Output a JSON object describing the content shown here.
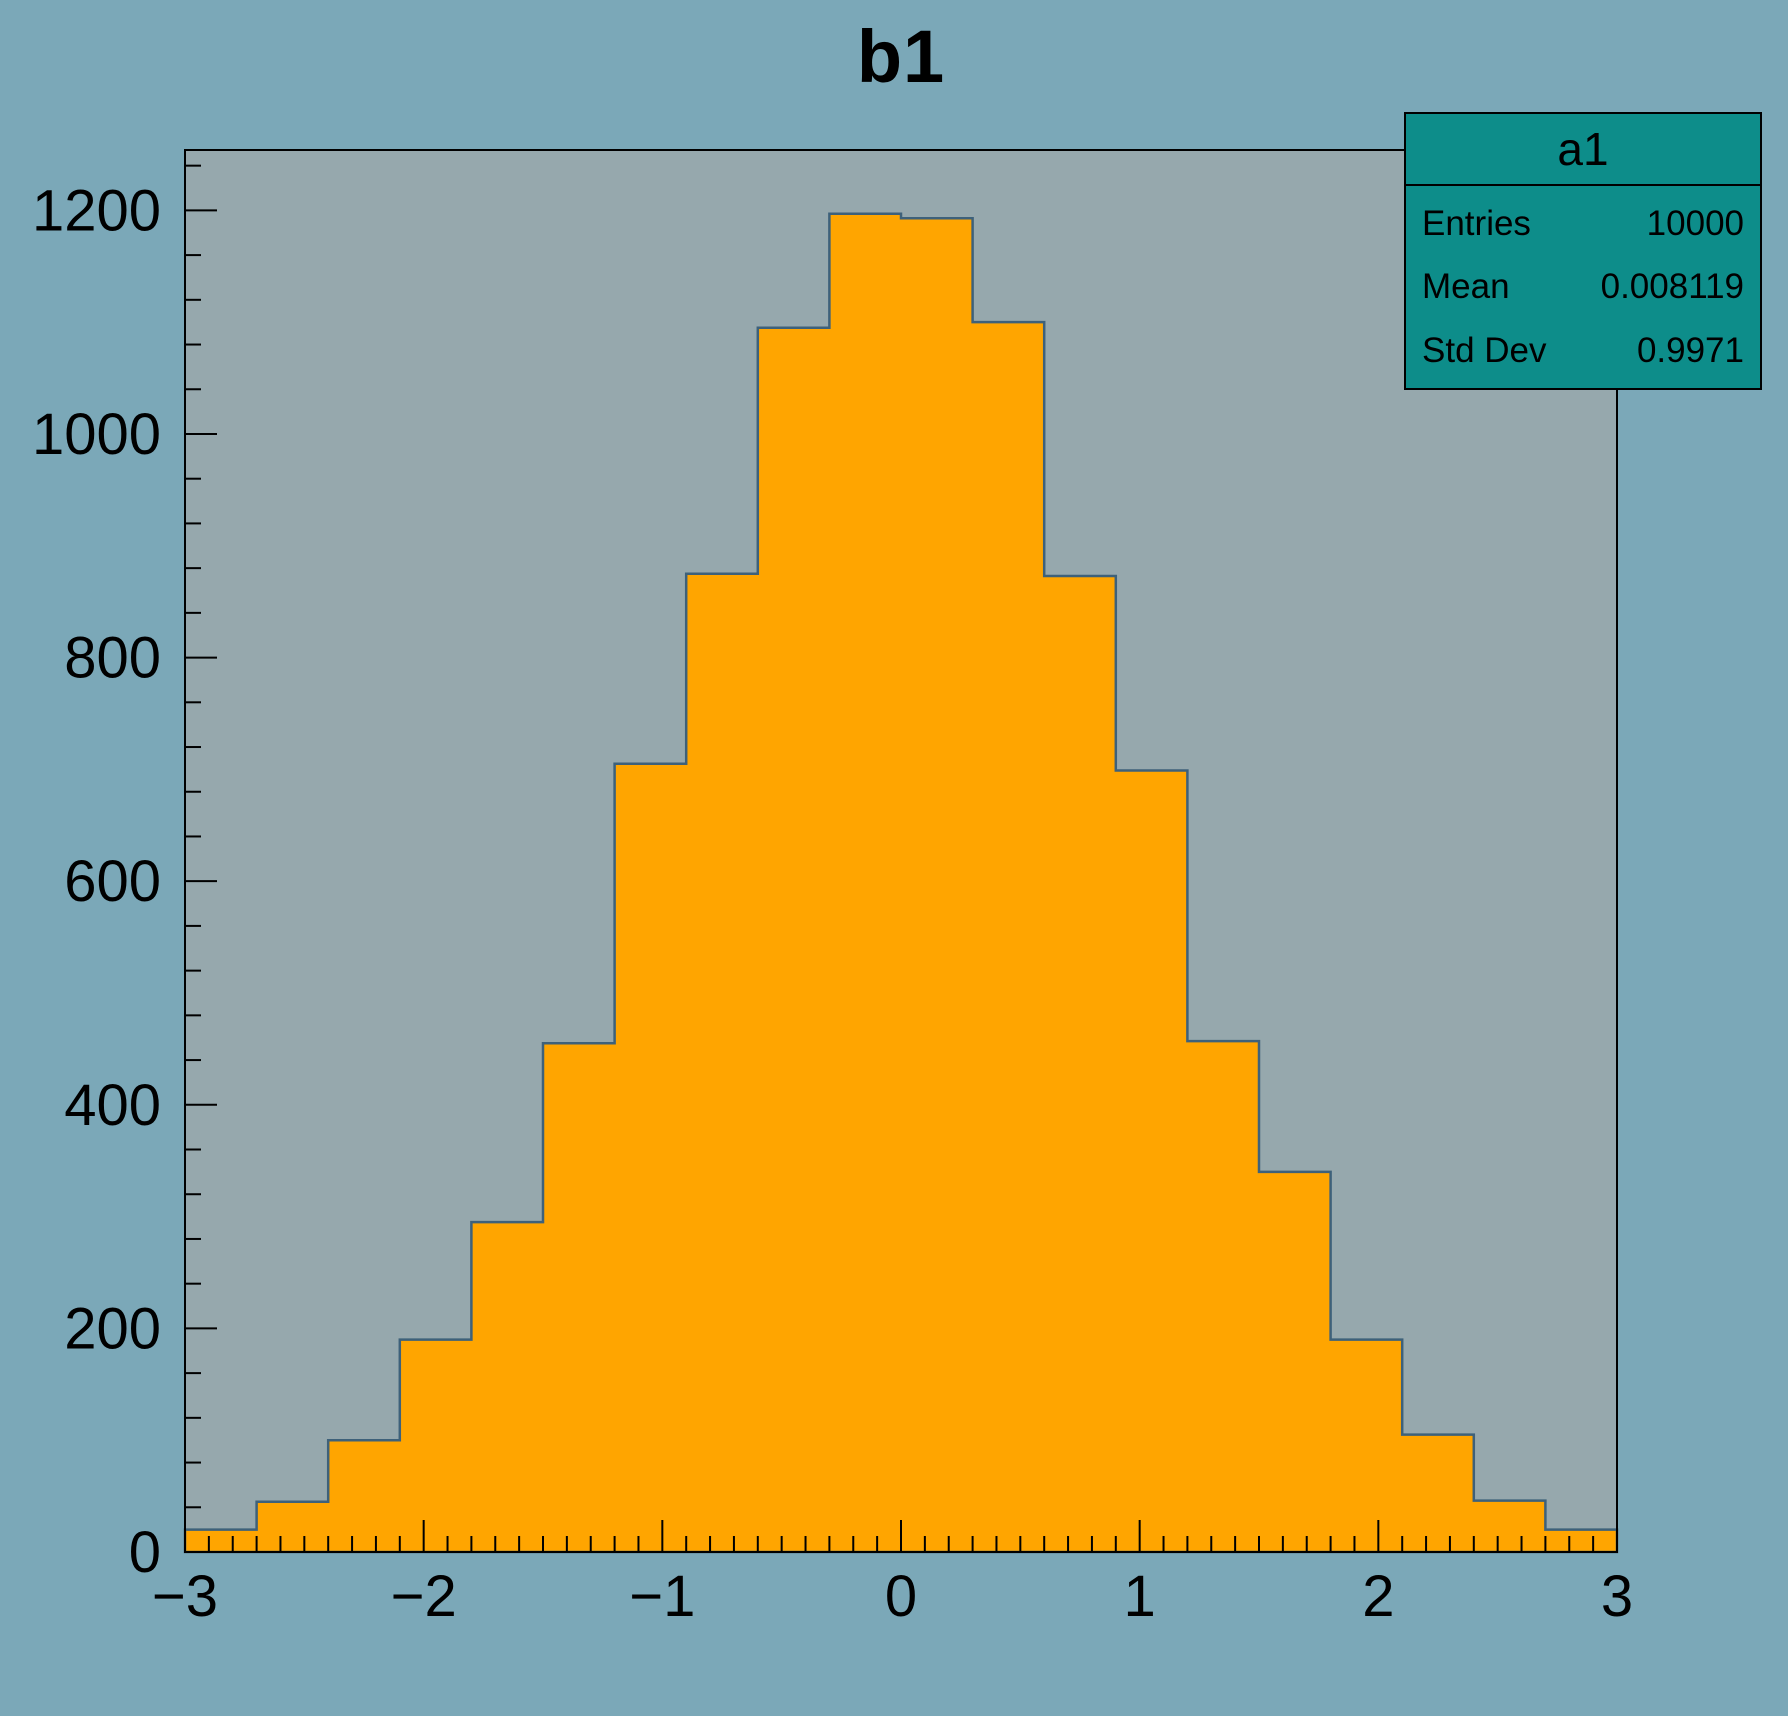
{
  "title": "b1",
  "colors": {
    "canvas_bg": "#7ba8b8",
    "frame_bg": "#96a8ad",
    "hist_fill": "#ffa500",
    "hist_line": "#3e617a",
    "stats_bg": "#0d8d8a",
    "axis_color": "#000000"
  },
  "stats_box": {
    "title": "a1",
    "rows": [
      {
        "label": "Entries",
        "value": "10000"
      },
      {
        "label": "Mean",
        "value": "0.008119"
      },
      {
        "label": "Std Dev",
        "value": "0.9971"
      }
    ]
  },
  "chart_data": {
    "type": "bar",
    "subtype": "histogram",
    "title": "b1",
    "xlabel": "",
    "ylabel": "",
    "xlim": [
      -3,
      3
    ],
    "ylim": [
      0,
      1254
    ],
    "grid": false,
    "legend_position": "stats box top-right",
    "bin_width": 0.3,
    "bin_edges": [
      -3.0,
      -2.7,
      -2.4,
      -2.1,
      -1.8,
      -1.5,
      -1.2,
      -0.9,
      -0.6,
      -0.3,
      0.0,
      0.3,
      0.6,
      0.9,
      1.2,
      1.5,
      1.8,
      2.1,
      2.4,
      2.7,
      3.0
    ],
    "values": [
      20,
      45,
      100,
      190,
      295,
      455,
      705,
      875,
      1095,
      1197,
      1193,
      1100,
      873,
      699,
      457,
      340,
      190,
      105,
      46,
      20
    ],
    "xticks": [
      -3,
      -2,
      -1,
      0,
      1,
      2,
      3
    ],
    "xtick_labels": [
      "−3",
      "−2",
      "−1",
      "0",
      "1",
      "2",
      "3"
    ],
    "yticks": [
      0,
      200,
      400,
      600,
      800,
      1000,
      1200
    ],
    "ytick_labels": [
      "0",
      "200",
      "400",
      "600",
      "800",
      "1000",
      "1200"
    ],
    "x_minor_step": 0.1,
    "y_minor_step": 40,
    "entries": 10000,
    "mean": 0.008119,
    "std_dev": 0.9971
  }
}
